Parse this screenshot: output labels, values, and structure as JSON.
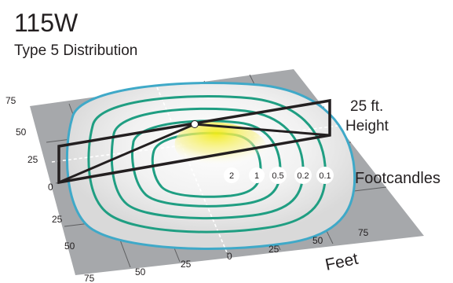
{
  "title": "115W",
  "subtitle": "Type 5 Distribution",
  "height_label_line1": "25 ft.",
  "height_label_line2": "Height",
  "footcandles_label": "Footcandles",
  "feet_label": "Feet",
  "left_axis_ticks": [
    "75",
    "50",
    "25",
    "0",
    "25",
    "50",
    "75"
  ],
  "bottom_axis_ticks": [
    "50",
    "25",
    "0",
    "25",
    "50",
    "75"
  ],
  "footcandle_levels": [
    "2",
    "1",
    "0.5",
    "0.2",
    "0.1"
  ],
  "colors": {
    "grid_fill": "#a6a8ab",
    "grid_line": "#58595b",
    "outer_contour": "#3fa9c8",
    "inner_contour": "#1f9e82",
    "light_glow": "#f3ec19",
    "frame": "#231f20"
  }
}
